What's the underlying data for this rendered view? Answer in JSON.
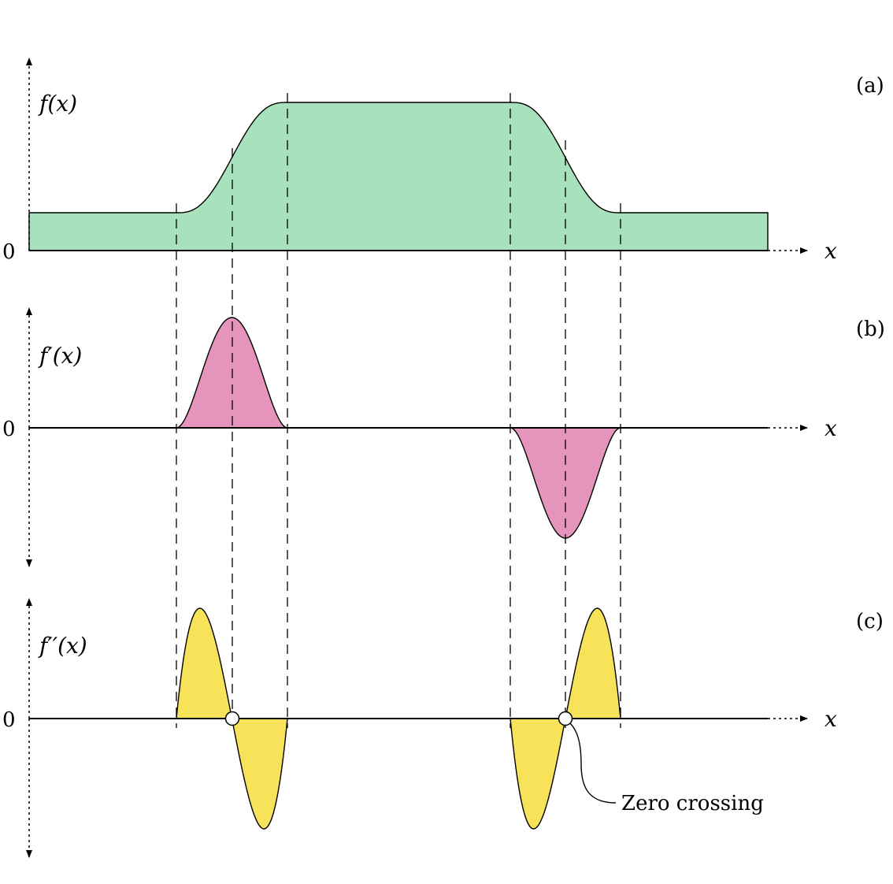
{
  "panels": [
    {
      "id": "a",
      "tag": "(a)",
      "function_label": "f(x)",
      "zero_label": "0",
      "x_label": "x",
      "fill": "#a8e2bc"
    },
    {
      "id": "b",
      "tag": "(b)",
      "function_label": "f′(x)",
      "zero_label": "0",
      "x_label": "x",
      "fill": "#e595bc"
    },
    {
      "id": "c",
      "tag": "(c)",
      "function_label": "f′′(x)",
      "zero_label": "0",
      "x_label": "x",
      "fill": "#f7e25a"
    }
  ],
  "annotation": {
    "zero_crossing_label": "Zero crossing"
  }
}
